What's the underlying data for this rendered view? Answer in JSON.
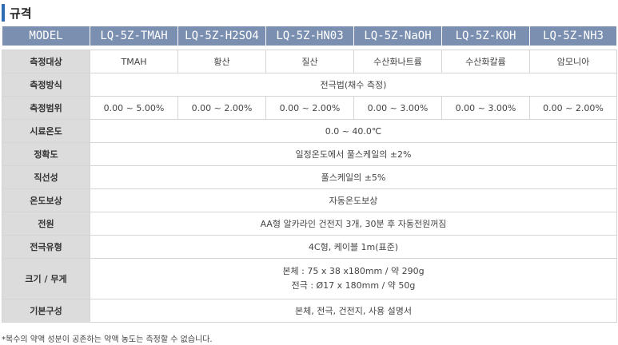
{
  "title": "규격",
  "header": [
    "MODEL",
    "LQ-5Z-TMAH",
    "LQ-5Z-H2SO4",
    "LQ-5Z-HN03",
    "LQ-5Z-NaOH",
    "LQ-5Z-KOH",
    "LQ-5Z-NH3"
  ],
  "rows": {
    "target": {
      "label": "측정대상",
      "cells": [
        "TMAH",
        "황산",
        "질산",
        "수산화나트륨",
        "수산화칼륨",
        "암모니아"
      ]
    },
    "method": {
      "label": "측정방식",
      "value": "전극법(채수 측정)"
    },
    "range": {
      "label": "측정범위",
      "cells": [
        "0.00 ~ 5.00%",
        "0.00 ~ 2.00%",
        "0.00 ~ 2.00%",
        "0.00 ~ 3.00%",
        "0.00 ~ 3.00%",
        "0.00 ~ 2.00%"
      ]
    },
    "sample_temp": {
      "label": "시료온도",
      "value": "0.0 ~ 40.0℃"
    },
    "accuracy": {
      "label": "정확도",
      "value": "일정온도에서 풀스케일의 ±2%"
    },
    "linearity": {
      "label": "직선성",
      "value": "풀스케일의 ±5%"
    },
    "temp_comp": {
      "label": "온도보상",
      "value": "자동온도보상"
    },
    "power": {
      "label": "전원",
      "value": "AA형 알카라인 건전지 3개, 30분 후 자동전원꺼짐"
    },
    "electrode": {
      "label": "전극유형",
      "value": "4C형, 케이블 1m(표준)"
    },
    "size": {
      "label": "크기 / 무게",
      "line1": "본체 : 75 x 38 x180mm / 약 290g",
      "line2": "전극 : Ø17 x 180mm / 약 50g"
    },
    "basic": {
      "label": "기본구성",
      "value": "본체, 전극, 건전지, 사용 설명서"
    }
  },
  "footnote": "*복수의 약액 성분이 공존하는 약액 농도는 측정할 수 없습니다."
}
